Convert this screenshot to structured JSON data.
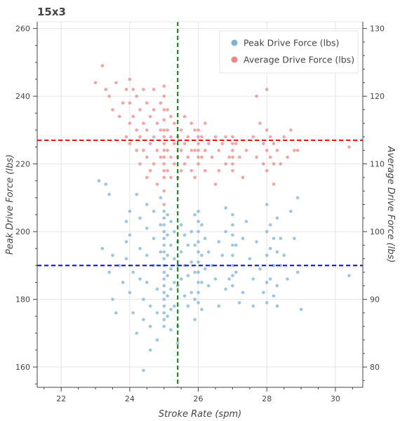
{
  "chart_data": {
    "type": "scatter",
    "title": "15x3",
    "xlabel": "Stroke Rate (spm)",
    "ylabel": "Peak Drive Force (lbs)",
    "y2label": "Average Drive Force (lbs)",
    "xlim": [
      21.3,
      30.8
    ],
    "ylim": [
      154,
      262
    ],
    "y2lim": [
      77,
      131
    ],
    "xticks": [
      22,
      24,
      26,
      28,
      30
    ],
    "yticks": [
      160,
      180,
      200,
      220,
      240,
      260
    ],
    "y2ticks": [
      80,
      90,
      100,
      110,
      120,
      130
    ],
    "grid": true,
    "legend_position": "top-right",
    "series": [
      {
        "name": "Peak Drive Force (lbs)",
        "axis": "left",
        "color": "#7fb2d6",
        "points": [
          [
            23.1,
            215
          ],
          [
            23.3,
            214
          ],
          [
            23.4,
            211
          ],
          [
            23.2,
            195
          ],
          [
            23.5,
            193
          ],
          [
            23.7,
            190
          ],
          [
            23.4,
            188
          ],
          [
            23.8,
            185
          ],
          [
            23.5,
            180
          ],
          [
            23.6,
            176
          ],
          [
            23.9,
            203
          ],
          [
            23.9,
            197
          ],
          [
            23.9,
            192
          ],
          [
            24.0,
            206
          ],
          [
            24.0,
            199
          ],
          [
            24.1,
            188
          ],
          [
            24.0,
            182
          ],
          [
            24.1,
            176
          ],
          [
            24.2,
            170
          ],
          [
            24.2,
            211
          ],
          [
            24.3,
            204
          ],
          [
            24.3,
            195
          ],
          [
            24.3,
            186
          ],
          [
            24.4,
            180
          ],
          [
            24.4,
            174
          ],
          [
            24.5,
            208
          ],
          [
            24.5,
            201
          ],
          [
            24.5,
            193
          ],
          [
            24.5,
            185
          ],
          [
            24.6,
            178
          ],
          [
            24.6,
            172
          ],
          [
            24.6,
            165
          ],
          [
            24.7,
            206
          ],
          [
            24.7,
            198
          ],
          [
            24.7,
            190
          ],
          [
            24.8,
            183
          ],
          [
            24.8,
            176
          ],
          [
            24.8,
            168
          ],
          [
            24.4,
            159
          ],
          [
            24.9,
            210
          ],
          [
            24.9,
            202
          ],
          [
            24.9,
            194
          ],
          [
            25.0,
            206
          ],
          [
            25.0,
            204
          ],
          [
            25.0,
            202
          ],
          [
            25.0,
            200
          ],
          [
            25.0,
            198
          ],
          [
            25.0,
            196
          ],
          [
            25.0,
            194
          ],
          [
            25.0,
            192
          ],
          [
            25.0,
            190
          ],
          [
            25.0,
            188
          ],
          [
            25.0,
            186
          ],
          [
            25.0,
            184
          ],
          [
            25.0,
            182
          ],
          [
            25.0,
            180
          ],
          [
            25.0,
            178
          ],
          [
            25.0,
            176
          ],
          [
            25.0,
            174
          ],
          [
            25.0,
            172
          ],
          [
            25.1,
            205
          ],
          [
            25.1,
            199
          ],
          [
            25.1,
            193
          ],
          [
            25.1,
            187
          ],
          [
            25.1,
            181
          ],
          [
            25.1,
            175
          ],
          [
            25.2,
            203
          ],
          [
            25.2,
            196
          ],
          [
            25.2,
            189
          ],
          [
            25.2,
            183
          ],
          [
            25.2,
            177
          ],
          [
            25.2,
            171
          ],
          [
            25.3,
            200
          ],
          [
            25.3,
            192
          ],
          [
            25.3,
            185
          ],
          [
            25.3,
            178
          ],
          [
            25.4,
            197
          ],
          [
            25.4,
            190
          ],
          [
            25.4,
            184
          ],
          [
            25.4,
            172
          ],
          [
            25.4,
            167
          ],
          [
            25.5,
            202
          ],
          [
            25.5,
            194
          ],
          [
            25.5,
            186
          ],
          [
            25.6,
            199
          ],
          [
            25.6,
            190
          ],
          [
            25.6,
            181
          ],
          [
            25.7,
            196
          ],
          [
            25.7,
            187
          ],
          [
            25.7,
            178
          ],
          [
            25.8,
            200
          ],
          [
            25.8,
            191
          ],
          [
            25.8,
            182
          ],
          [
            25.9,
            205
          ],
          [
            25.9,
            196
          ],
          [
            25.9,
            188
          ],
          [
            25.9,
            180
          ],
          [
            25.9,
            174
          ],
          [
            26.0,
            206
          ],
          [
            26.0,
            203
          ],
          [
            26.0,
            200
          ],
          [
            26.0,
            197
          ],
          [
            26.0,
            194
          ],
          [
            26.0,
            191
          ],
          [
            26.0,
            188
          ],
          [
            26.0,
            185
          ],
          [
            26.0,
            182
          ],
          [
            26.0,
            179
          ],
          [
            26.1,
            202
          ],
          [
            26.1,
            193
          ],
          [
            26.1,
            185
          ],
          [
            26.1,
            177
          ],
          [
            26.2,
            198
          ],
          [
            26.2,
            189
          ],
          [
            26.3,
            194
          ],
          [
            26.3,
            184
          ],
          [
            26.4,
            190
          ],
          [
            26.5,
            186
          ],
          [
            26.6,
            178
          ],
          [
            26.6,
            197
          ],
          [
            26.7,
            193
          ],
          [
            26.8,
            207
          ],
          [
            26.8,
            200
          ],
          [
            26.8,
            183
          ],
          [
            26.9,
            186
          ],
          [
            27.0,
            205
          ],
          [
            27.0,
            202
          ],
          [
            27.0,
            199
          ],
          [
            27.0,
            196
          ],
          [
            27.0,
            193
          ],
          [
            27.0,
            190
          ],
          [
            27.0,
            187
          ],
          [
            27.0,
            184
          ],
          [
            27.1,
            196
          ],
          [
            27.1,
            188
          ],
          [
            27.2,
            179
          ],
          [
            27.3,
            182
          ],
          [
            27.3,
            198
          ],
          [
            27.4,
            203
          ],
          [
            27.5,
            192
          ],
          [
            27.6,
            186
          ],
          [
            27.6,
            178
          ],
          [
            27.7,
            197
          ],
          [
            27.8,
            189
          ],
          [
            27.9,
            182
          ],
          [
            28.0,
            208
          ],
          [
            28.0,
            200
          ],
          [
            28.0,
            193
          ],
          [
            28.0,
            185
          ],
          [
            28.0,
            179
          ],
          [
            28.1,
            202
          ],
          [
            28.1,
            195
          ],
          [
            28.1,
            186
          ],
          [
            28.2,
            198
          ],
          [
            28.2,
            190
          ],
          [
            28.2,
            181
          ],
          [
            28.3,
            204
          ],
          [
            28.3,
            194
          ],
          [
            28.3,
            184
          ],
          [
            28.3,
            178
          ],
          [
            28.4,
            198
          ],
          [
            28.4,
            190
          ],
          [
            28.5,
            193
          ],
          [
            28.6,
            186
          ],
          [
            28.7,
            206
          ],
          [
            28.8,
            198
          ],
          [
            28.9,
            210
          ],
          [
            28.9,
            188
          ],
          [
            29.0,
            177
          ],
          [
            30.4,
            187
          ]
        ]
      },
      {
        "name": "Average Drive Force (lbs)",
        "axis": "right",
        "color": "#f08585",
        "points": [
          [
            23.0,
            122
          ],
          [
            23.2,
            124.5
          ],
          [
            23.3,
            121
          ],
          [
            23.4,
            120
          ],
          [
            23.5,
            118
          ],
          [
            23.6,
            122
          ],
          [
            23.7,
            117
          ],
          [
            23.8,
            119
          ],
          [
            23.9,
            121
          ],
          [
            23.9,
            114
          ],
          [
            24.0,
            122.5
          ],
          [
            24.0,
            119
          ],
          [
            24.0,
            116
          ],
          [
            24.0,
            113
          ],
          [
            24.1,
            121
          ],
          [
            24.1,
            117
          ],
          [
            24.2,
            120
          ],
          [
            24.2,
            115
          ],
          [
            24.2,
            112
          ],
          [
            24.3,
            118
          ],
          [
            24.3,
            114
          ],
          [
            24.3,
            110
          ],
          [
            24.4,
            121
          ],
          [
            24.4,
            116
          ],
          [
            24.4,
            112
          ],
          [
            24.5,
            119
          ],
          [
            24.5,
            115
          ],
          [
            24.5,
            111
          ],
          [
            24.5,
            108
          ],
          [
            24.6,
            117
          ],
          [
            24.6,
            113
          ],
          [
            24.6,
            109
          ],
          [
            24.7,
            121
          ],
          [
            24.7,
            118
          ],
          [
            24.7,
            114
          ],
          [
            24.7,
            110
          ],
          [
            24.8,
            116
          ],
          [
            24.8,
            112
          ],
          [
            24.8,
            107
          ],
          [
            24.9,
            119
          ],
          [
            24.9,
            115
          ],
          [
            24.9,
            111
          ],
          [
            25.0,
            121.5
          ],
          [
            25.0,
            120
          ],
          [
            25.0,
            118
          ],
          [
            25.0,
            116.5
          ],
          [
            25.0,
            115
          ],
          [
            25.0,
            114
          ],
          [
            25.0,
            113
          ],
          [
            25.0,
            112
          ],
          [
            25.0,
            111
          ],
          [
            25.0,
            110
          ],
          [
            25.0,
            109
          ],
          [
            25.0,
            108
          ],
          [
            25.0,
            106
          ],
          [
            25.0,
            104
          ],
          [
            25.1,
            118
          ],
          [
            25.1,
            115
          ],
          [
            25.1,
            112
          ],
          [
            25.1,
            109
          ],
          [
            25.2,
            117
          ],
          [
            25.2,
            114
          ],
          [
            25.2,
            111
          ],
          [
            25.2,
            108
          ],
          [
            25.3,
            116
          ],
          [
            25.3,
            113
          ],
          [
            25.3,
            110
          ],
          [
            25.4,
            114
          ],
          [
            25.4,
            111
          ],
          [
            25.4,
            108
          ],
          [
            25.5,
            115
          ],
          [
            25.5,
            112
          ],
          [
            25.5,
            109
          ],
          [
            25.6,
            117
          ],
          [
            25.6,
            113
          ],
          [
            25.6,
            110
          ],
          [
            25.7,
            114
          ],
          [
            25.7,
            111
          ],
          [
            25.8,
            116
          ],
          [
            25.8,
            112
          ],
          [
            25.8,
            109
          ],
          [
            25.9,
            115
          ],
          [
            25.9,
            112
          ],
          [
            25.9,
            108
          ],
          [
            26.0,
            115
          ],
          [
            26.0,
            114
          ],
          [
            26.0,
            113
          ],
          [
            26.0,
            112
          ],
          [
            26.0,
            111
          ],
          [
            26.0,
            110
          ],
          [
            26.1,
            114
          ],
          [
            26.1,
            111
          ],
          [
            26.2,
            116
          ],
          [
            26.2,
            112
          ],
          [
            26.2,
            109
          ],
          [
            26.3,
            113
          ],
          [
            26.4,
            111
          ],
          [
            26.5,
            114
          ],
          [
            26.5,
            107
          ],
          [
            26.6,
            112
          ],
          [
            26.6,
            109
          ],
          [
            26.7,
            113
          ],
          [
            26.8,
            110
          ],
          [
            26.8,
            114
          ],
          [
            26.9,
            111
          ],
          [
            27.0,
            114
          ],
          [
            27.0,
            113
          ],
          [
            27.0,
            112
          ],
          [
            27.0,
            111
          ],
          [
            27.0,
            110
          ],
          [
            27.0,
            109
          ],
          [
            27.1,
            113
          ],
          [
            27.2,
            111
          ],
          [
            27.3,
            108
          ],
          [
            27.4,
            112
          ],
          [
            27.6,
            114
          ],
          [
            27.7,
            120
          ],
          [
            27.7,
            111
          ],
          [
            27.8,
            116
          ],
          [
            27.9,
            113
          ],
          [
            27.9,
            110
          ],
          [
            28.0,
            121
          ],
          [
            28.0,
            115
          ],
          [
            28.0,
            112
          ],
          [
            28.0,
            109
          ],
          [
            28.1,
            114
          ],
          [
            28.1,
            111
          ],
          [
            28.2,
            113
          ],
          [
            28.2,
            110
          ],
          [
            28.2,
            107
          ],
          [
            28.3,
            112
          ],
          [
            28.4,
            110
          ],
          [
            28.5,
            114
          ],
          [
            28.6,
            111
          ],
          [
            28.7,
            115
          ],
          [
            28.8,
            112
          ],
          [
            28.9,
            112
          ],
          [
            30.4,
            112.5
          ]
        ]
      }
    ],
    "reference_lines": [
      {
        "orientation": "horizontal",
        "axis": "left",
        "value": 227,
        "color": "#ff0000"
      },
      {
        "orientation": "horizontal",
        "axis": "left",
        "value": 190,
        "color": "#0000ff"
      },
      {
        "orientation": "vertical",
        "axis": "x",
        "value": 25.4,
        "color": "#008000"
      }
    ]
  }
}
